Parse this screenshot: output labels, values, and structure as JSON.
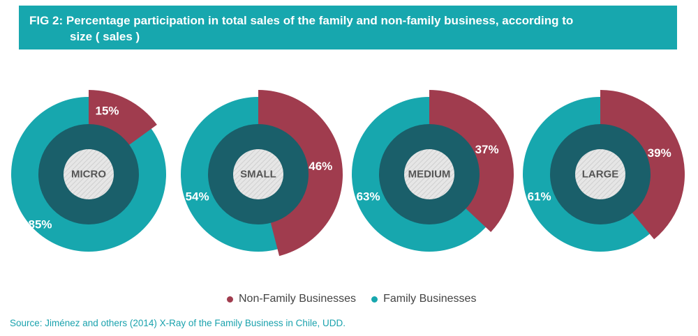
{
  "title": {
    "line1": "FIG 2: Percentage participation in total sales of the family and non-family business, according to",
    "line2": "size ( sales )"
  },
  "colors": {
    "non_family": "#a03c4e",
    "family": "#17a7ae",
    "inner_ring": "#1a5f6a",
    "banner": "#17a7ae"
  },
  "chart_data": {
    "type": "pie",
    "subtype": "donut",
    "value_unit": "%",
    "charts": [
      {
        "center_label": "MICRO",
        "non_family": 15,
        "family": 85,
        "non_family_label": "15%",
        "family_label": "85%"
      },
      {
        "center_label": "SMALL",
        "non_family": 46,
        "family": 54,
        "non_family_label": "46%",
        "family_label": "54%"
      },
      {
        "center_label": "MEDIUM",
        "non_family": 37,
        "family": 63,
        "non_family_label": "37%",
        "family_label": "63%"
      },
      {
        "center_label": "LARGE",
        "non_family": 39,
        "family": 61,
        "non_family_label": "39%",
        "family_label": "61%"
      }
    ],
    "legend": [
      "Non-Family Businesses",
      "Family Businesses"
    ],
    "legend_position": "bottom"
  },
  "source": "Source: Jiménez and others (2014) X-Ray of the Family Business in Chile, UDD."
}
